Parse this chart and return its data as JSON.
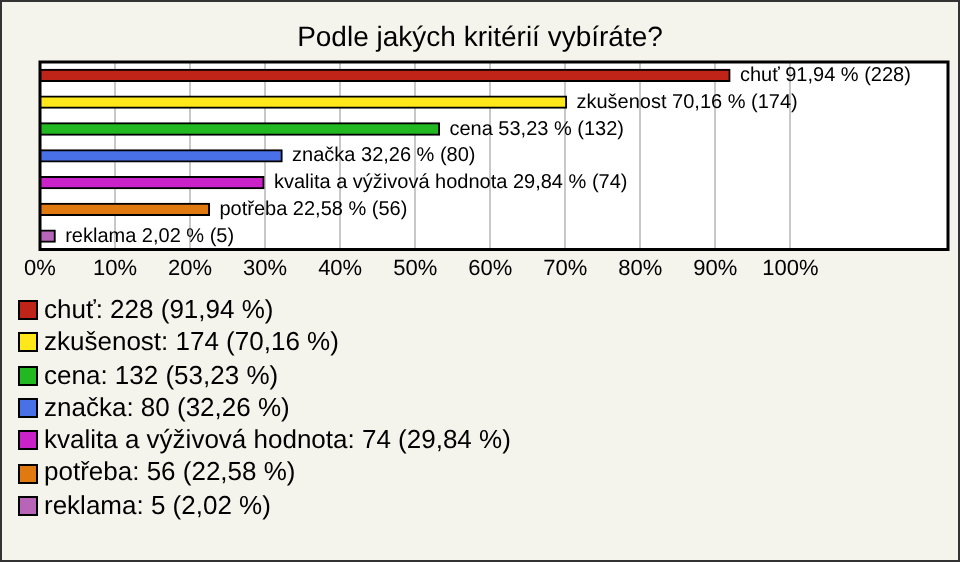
{
  "chart_data": {
    "type": "bar",
    "orientation": "horizontal",
    "title": "Podle jakých kritérií vybíráte?",
    "categories": [
      null,
      null,
      null,
      null,
      null,
      null,
      null
    ],
    "values": [
      91.94,
      70.16,
      53.23,
      32.26,
      29.84,
      22.58,
      2.02
    ],
    "colors": [
      "#c02418",
      "#ffe81a",
      "#22b822",
      "#4a70e8",
      "#c822c8",
      "#e07a10",
      "#b864b8"
    ],
    "value_labels": [
      "chuť 91,94 % (228)",
      "zkušenost 70,16 % (174)",
      "cena 53,23 % (132)",
      "značka 32,26 % (80)",
      "kvalita a výživová hodnota 29,84 % (74)",
      "potřeba 22,58 % (56)",
      "reklama 2,02 % (5)"
    ],
    "xlim": [
      0,
      121
    ],
    "xticks": [
      {
        "value": 0,
        "label": "0%"
      },
      {
        "value": 10,
        "label": "10%"
      },
      {
        "value": 20,
        "label": "20%"
      },
      {
        "value": 30,
        "label": "30%"
      },
      {
        "value": 40,
        "label": "40%"
      },
      {
        "value": 50,
        "label": "50%"
      },
      {
        "value": 60,
        "label": "60%"
      },
      {
        "value": 70,
        "label": "70%"
      },
      {
        "value": 80,
        "label": "80%"
      },
      {
        "value": 90,
        "label": "90%"
      },
      {
        "value": 100,
        "label": "100%"
      }
    ],
    "grid": "x",
    "tick_labels": "x",
    "annotations": [
      "chuť: 228 (91,94 %)",
      "zkušenost: 174 (70,16 %)",
      "cena: 132 (53,23 %)",
      "značka: 80 (32,26 %)",
      "kvalita a výživová hodnota: 74 (29,84 %)",
      "potřeba: 56 (22,58 %)",
      "reklama: 5 (2,02 %)"
    ]
  }
}
